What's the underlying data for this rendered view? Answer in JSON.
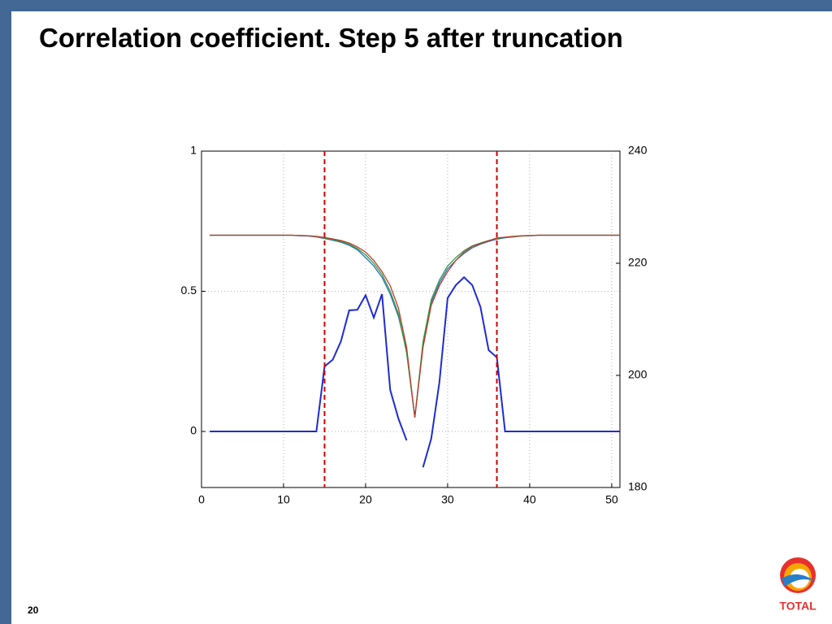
{
  "page_number": "20",
  "logo_text": "TOTAL",
  "chart_data": {
    "type": "line",
    "title": "Correlation coefficient. Step 5 after truncation",
    "x": [
      1,
      2,
      3,
      4,
      5,
      6,
      7,
      8,
      9,
      10,
      11,
      12,
      13,
      14,
      15,
      16,
      17,
      18,
      19,
      20,
      21,
      22,
      23,
      24,
      25,
      26,
      27,
      28,
      29,
      30,
      31,
      32,
      33,
      34,
      35,
      36,
      37,
      38,
      39,
      40,
      41,
      42,
      43,
      44,
      45,
      46,
      47,
      48,
      49,
      50,
      51
    ],
    "xlim": [
      0,
      51
    ],
    "xticks": [
      0,
      10,
      20,
      30,
      40,
      50
    ],
    "ylim": [
      -0.2,
      1
    ],
    "yticks": [
      0,
      0.5,
      1
    ],
    "y2lim": [
      180,
      240
    ],
    "y2ticks": [
      180,
      200,
      220,
      240
    ],
    "grid": true,
    "vlines": [
      15,
      36
    ],
    "vline_color": "#cc0000",
    "series": [
      {
        "color": "#2a6fc9",
        "values": [
          0.7,
          0.7,
          0.7,
          0.7,
          0.7,
          0.7,
          0.7,
          0.7,
          0.7,
          0.7,
          0.7,
          0.698,
          0.697,
          0.694,
          0.688,
          0.682,
          0.675,
          0.664,
          0.648,
          0.62,
          0.59,
          0.55,
          0.49,
          0.41,
          0.29,
          0.05,
          0.31,
          0.46,
          0.53,
          0.58,
          0.61,
          0.635,
          0.655,
          0.668,
          0.678,
          0.686,
          0.691,
          0.694,
          0.697,
          0.698,
          0.7,
          0.7,
          0.7,
          0.7,
          0.7,
          0.7,
          0.7,
          0.7,
          0.7,
          0.7,
          0.7
        ]
      },
      {
        "color": "#2e9e3a",
        "values": [
          0.7,
          0.7,
          0.7,
          0.7,
          0.7,
          0.7,
          0.7,
          0.7,
          0.7,
          0.7,
          0.7,
          0.699,
          0.698,
          0.695,
          0.69,
          0.684,
          0.678,
          0.668,
          0.652,
          0.63,
          0.6,
          0.56,
          0.5,
          0.42,
          0.28,
          0.05,
          0.32,
          0.47,
          0.54,
          0.59,
          0.62,
          0.645,
          0.662,
          0.672,
          0.681,
          0.688,
          0.692,
          0.695,
          0.697,
          0.699,
          0.7,
          0.7,
          0.7,
          0.7,
          0.7,
          0.7,
          0.7,
          0.7,
          0.7,
          0.7,
          0.7
        ]
      },
      {
        "color": "#c0392b",
        "values": [
          0.7,
          0.7,
          0.7,
          0.7,
          0.7,
          0.7,
          0.7,
          0.7,
          0.7,
          0.7,
          0.7,
          0.699,
          0.698,
          0.696,
          0.692,
          0.687,
          0.681,
          0.672,
          0.658,
          0.64,
          0.61,
          0.57,
          0.52,
          0.44,
          0.3,
          0.05,
          0.3,
          0.45,
          0.52,
          0.57,
          0.61,
          0.64,
          0.66,
          0.67,
          0.68,
          0.69,
          0.693,
          0.696,
          0.698,
          0.699,
          0.7,
          0.7,
          0.7,
          0.7,
          0.7,
          0.7,
          0.7,
          0.7,
          0.7,
          0.7,
          0.7
        ]
      },
      {
        "color": "#1f2bd6",
        "axis": "y2",
        "values": [
          190,
          190,
          190,
          190,
          190,
          190,
          190,
          190,
          190,
          190,
          190,
          190,
          190,
          190,
          201.6,
          202.8,
          206.1,
          211.6,
          211.7,
          214.3,
          210.3,
          214.5,
          197.4,
          192.3,
          188.4,
          null,
          183.6,
          188.7,
          198.8,
          213.8,
          216.1,
          217.5,
          216.1,
          212.2,
          204.5,
          203.2,
          190,
          190,
          190,
          190,
          190,
          190,
          190,
          190,
          190,
          190,
          190,
          190,
          190,
          190,
          190
        ]
      }
    ]
  }
}
